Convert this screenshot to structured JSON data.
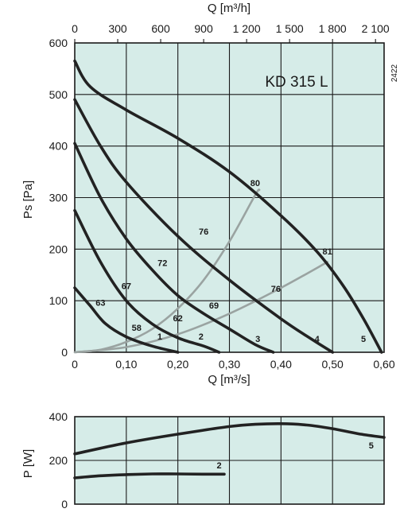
{
  "chart_data": [
    {
      "type": "line",
      "title": "KD 315 L",
      "side_code": "2422",
      "xlabel": "Q [m³/s]",
      "ylabel": "Ps [Pa]",
      "top_xlabel": "Q [m³/h]",
      "xlim": [
        0,
        0.6
      ],
      "ylim": [
        0,
        600
      ],
      "x_ticks": [
        0,
        0.1,
        0.2,
        0.3,
        0.4,
        0.5,
        0.6
      ],
      "x_tick_labels": [
        "0",
        "0,10",
        "0,20",
        "0,30",
        "0,40",
        "0,50",
        "0,60"
      ],
      "y_ticks": [
        0,
        100,
        200,
        300,
        400,
        500,
        600
      ],
      "y_tick_labels": [
        "0",
        "100",
        "200",
        "300",
        "400",
        "500",
        "600"
      ],
      "top_ticks": [
        0,
        300,
        600,
        900,
        1200,
        1500,
        1800,
        2100
      ],
      "top_tick_labels": [
        "0",
        "300",
        "600",
        "900",
        "1 200",
        "1 500",
        "1 800",
        "2 100"
      ],
      "grid": true,
      "series": [
        {
          "name": "5",
          "color": "#222222",
          "points": [
            [
              0.0,
              565
            ],
            [
              0.03,
              515
            ],
            [
              0.1,
              470
            ],
            [
              0.2,
              415
            ],
            [
              0.3,
              350
            ],
            [
              0.4,
              265
            ],
            [
              0.47,
              195
            ],
            [
              0.52,
              130
            ],
            [
              0.56,
              65
            ],
            [
              0.595,
              0
            ]
          ]
        },
        {
          "name": "4",
          "color": "#222222",
          "points": [
            [
              0.0,
              490
            ],
            [
              0.05,
              400
            ],
            [
              0.1,
              330
            ],
            [
              0.2,
              225
            ],
            [
              0.3,
              140
            ],
            [
              0.4,
              65
            ],
            [
              0.46,
              25
            ],
            [
              0.5,
              0
            ]
          ]
        },
        {
          "name": "3",
          "color": "#222222",
          "points": [
            [
              0.0,
              405
            ],
            [
              0.05,
              300
            ],
            [
              0.1,
              220
            ],
            [
              0.15,
              160
            ],
            [
              0.2,
              110
            ],
            [
              0.25,
              75
            ],
            [
              0.3,
              45
            ],
            [
              0.35,
              15
            ],
            [
              0.385,
              0
            ]
          ]
        },
        {
          "name": "2",
          "color": "#222222",
          "points": [
            [
              0.0,
              275
            ],
            [
              0.05,
              175
            ],
            [
              0.1,
              100
            ],
            [
              0.15,
              55
            ],
            [
              0.2,
              28
            ],
            [
              0.25,
              12
            ],
            [
              0.28,
              0
            ]
          ]
        },
        {
          "name": "1",
          "color": "#222222",
          "points": [
            [
              0.0,
              125
            ],
            [
              0.03,
              90
            ],
            [
              0.06,
              55
            ],
            [
              0.1,
              30
            ],
            [
              0.15,
              12
            ],
            [
              0.2,
              0
            ]
          ]
        }
      ],
      "efficiency_lines": [
        {
          "name": "80",
          "color": "#9aa3a1",
          "points": [
            [
              0.0,
              0
            ],
            [
              0.05,
              5
            ],
            [
              0.1,
              20
            ],
            [
              0.15,
              45
            ],
            [
              0.2,
              85
            ],
            [
              0.25,
              140
            ],
            [
              0.3,
              215
            ],
            [
              0.35,
              305
            ],
            [
              0.358,
              315
            ]
          ]
        },
        {
          "name": "81",
          "color": "#9aa3a1",
          "points": [
            [
              0.0,
              0
            ],
            [
              0.1,
              10
            ],
            [
              0.2,
              35
            ],
            [
              0.3,
              75
            ],
            [
              0.4,
              125
            ],
            [
              0.49,
              175
            ]
          ]
        }
      ],
      "annotations": [
        {
          "text": "80",
          "x": 0.35,
          "y": 322
        },
        {
          "text": "81",
          "x": 0.49,
          "y": 190
        },
        {
          "text": "76",
          "x": 0.25,
          "y": 228
        },
        {
          "text": "76",
          "x": 0.39,
          "y": 117
        },
        {
          "text": "72",
          "x": 0.17,
          "y": 167
        },
        {
          "text": "69",
          "x": 0.27,
          "y": 85
        },
        {
          "text": "67",
          "x": 0.1,
          "y": 123
        },
        {
          "text": "63",
          "x": 0.05,
          "y": 90
        },
        {
          "text": "62",
          "x": 0.2,
          "y": 60
        },
        {
          "text": "58",
          "x": 0.12,
          "y": 42
        },
        {
          "text": "1",
          "x": 0.165,
          "y": 25
        },
        {
          "text": "2",
          "x": 0.245,
          "y": 25
        },
        {
          "text": "3",
          "x": 0.355,
          "y": 20
        },
        {
          "text": "4",
          "x": 0.47,
          "y": 20
        },
        {
          "text": "5",
          "x": 0.56,
          "y": 20
        }
      ]
    },
    {
      "type": "line",
      "xlabel": "",
      "ylabel": "P [W]",
      "xlim": [
        0,
        0.6
      ],
      "ylim": [
        0,
        400
      ],
      "y_ticks": [
        0,
        200,
        400
      ],
      "y_tick_labels": [
        "0",
        "200",
        "400"
      ],
      "grid": true,
      "series": [
        {
          "name": "5",
          "color": "#222222",
          "points": [
            [
              0.0,
              230
            ],
            [
              0.1,
              280
            ],
            [
              0.2,
              320
            ],
            [
              0.3,
              355
            ],
            [
              0.35,
              365
            ],
            [
              0.4,
              368
            ],
            [
              0.45,
              362
            ],
            [
              0.5,
              345
            ],
            [
              0.55,
              322
            ],
            [
              0.6,
              305
            ]
          ]
        },
        {
          "name": "2",
          "color": "#222222",
          "points": [
            [
              0.0,
              120
            ],
            [
              0.05,
              130
            ],
            [
              0.1,
              135
            ],
            [
              0.15,
              138
            ],
            [
              0.2,
              138
            ],
            [
              0.25,
              137
            ],
            [
              0.29,
              137
            ]
          ]
        }
      ],
      "annotations": [
        {
          "text": "5",
          "x": 0.575,
          "y": 255
        },
        {
          "text": "2",
          "x": 0.28,
          "y": 163
        }
      ]
    }
  ]
}
